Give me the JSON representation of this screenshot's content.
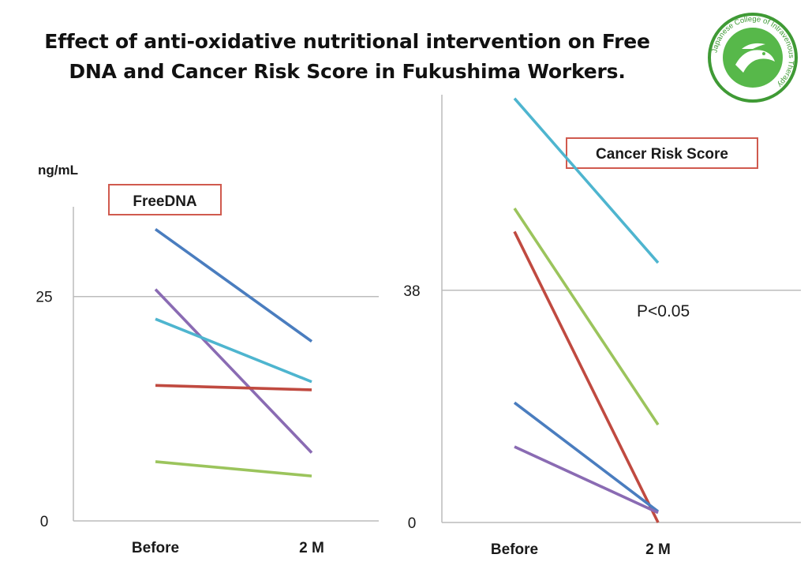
{
  "title_line1": "Effect of anti-oxidative nutritional intervention on Free",
  "title_line2": "DNA and Cancer Risk Score in Fukushima Workers.",
  "logo": {
    "text": "Japanese College of Intravenous Therapy",
    "colors": {
      "ring": "#3f9a35",
      "fill": "#57b84a"
    }
  },
  "chart_data": [
    {
      "type": "line",
      "legend_label": "FreeDNA",
      "ylabel": "ng/mL",
      "categories": [
        "Before",
        "2 M"
      ],
      "ytick_labels": [
        "25",
        "0"
      ],
      "yticks": [
        25,
        0
      ],
      "ylim": [
        0,
        35
      ],
      "reference_line": 25,
      "series": [
        {
          "color": "#4a7dbf",
          "values": [
            32.5,
            20.0
          ]
        },
        {
          "color": "#8a6bb3",
          "values": [
            25.8,
            7.6
          ]
        },
        {
          "color": "#4eb5cf",
          "values": [
            22.5,
            15.5
          ]
        },
        {
          "color": "#c04a40",
          "values": [
            15.1,
            14.6
          ]
        },
        {
          "color": "#9bc45c",
          "values": [
            6.6,
            5.0
          ]
        }
      ]
    },
    {
      "type": "line",
      "legend_label": "Cancer Risk Score",
      "annotation": "P<0.05",
      "categories": [
        "Before",
        "2 M"
      ],
      "ytick_labels": [
        "38",
        "0"
      ],
      "yticks": [
        38,
        0
      ],
      "ylim": [
        0,
        70
      ],
      "reference_line": 38,
      "series": [
        {
          "color": "#4eb5cf",
          "values": [
            69.4,
            42.5
          ]
        },
        {
          "color": "#9bc45c",
          "values": [
            51.4,
            16.0
          ]
        },
        {
          "color": "#c04a40",
          "values": [
            47.6,
            0.0
          ]
        },
        {
          "color": "#4a7dbf",
          "values": [
            19.6,
            1.8
          ]
        },
        {
          "color": "#8a6bb3",
          "values": [
            12.4,
            1.6
          ]
        }
      ]
    }
  ]
}
